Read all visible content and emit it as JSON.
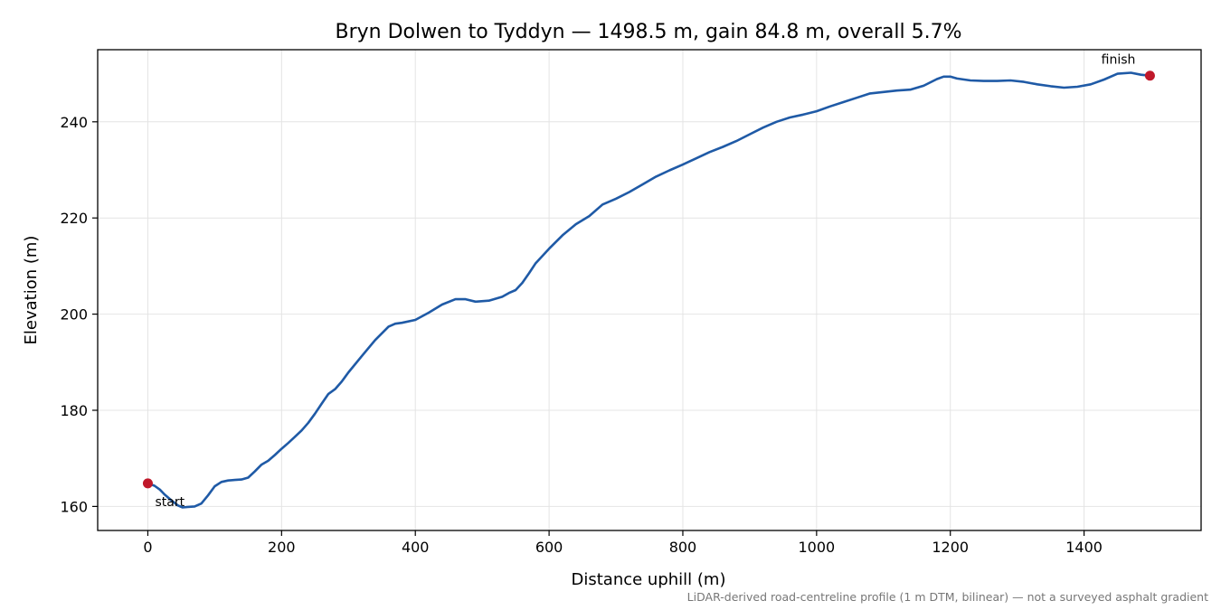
{
  "chart_data": {
    "type": "line",
    "title": "Bryn Dolwen to Tyddyn — 1498.5 m, gain 84.8 m, overall 5.7%",
    "xlabel": "Distance uphill (m)",
    "ylabel": "Elevation (m)",
    "xlim": [
      -75,
      1575
    ],
    "ylim": [
      155,
      255
    ],
    "xticks": [
      0,
      200,
      400,
      600,
      800,
      1000,
      1200,
      1400
    ],
    "yticks": [
      160,
      180,
      200,
      220,
      240
    ],
    "grid": true,
    "footnote": "LiDAR-derived road-centreline profile (1 m DTM, bilinear) — not a surveyed asphalt gradient",
    "colors": {
      "line": "#1f5aa6",
      "marker": "#c0182a",
      "grid": "#e4e4e4"
    },
    "series": [
      {
        "x": [
          0,
          10,
          18,
          25,
          35,
          45,
          52,
          60,
          70,
          80,
          90,
          100,
          110,
          120,
          130,
          140,
          150,
          160,
          170,
          180,
          190,
          200,
          210,
          220,
          230,
          240,
          250,
          260,
          270,
          280,
          290,
          300,
          320,
          340,
          360,
          370,
          380,
          400,
          420,
          440,
          460,
          475,
          490,
          510,
          530,
          540,
          550,
          560,
          570,
          580,
          590,
          600,
          620,
          640,
          660,
          680,
          700,
          720,
          740,
          760,
          780,
          800,
          820,
          840,
          860,
          880,
          900,
          920,
          940,
          960,
          980,
          1000,
          1020,
          1040,
          1060,
          1080,
          1100,
          1120,
          1140,
          1160,
          1180,
          1190,
          1200,
          1210,
          1230,
          1250,
          1270,
          1290,
          1310,
          1330,
          1350,
          1370,
          1390,
          1410,
          1430,
          1450,
          1470,
          1485,
          1498.5
        ],
        "y": [
          164.8,
          164.3,
          163.5,
          162.5,
          161.3,
          160.2,
          159.8,
          159.9,
          160.0,
          160.6,
          162.3,
          164.2,
          165.1,
          165.4,
          165.5,
          165.6,
          166.0,
          167.3,
          168.7,
          169.5,
          170.7,
          172.0,
          173.2,
          174.5,
          175.8,
          177.4,
          179.3,
          181.4,
          183.4,
          184.4,
          186.0,
          187.9,
          191.3,
          194.6,
          197.4,
          198.0,
          198.2,
          198.8,
          200.3,
          202.0,
          203.1,
          203.1,
          202.6,
          202.8,
          203.6,
          204.4,
          205.0,
          206.5,
          208.5,
          210.6,
          212.1,
          213.6,
          216.4,
          218.7,
          220.4,
          222.8,
          224.0,
          225.4,
          227.0,
          228.6,
          229.9,
          231.1,
          232.4,
          233.7,
          234.8,
          236.0,
          237.4,
          238.8,
          240.0,
          240.9,
          241.5,
          242.2,
          243.2,
          244.1,
          245.0,
          245.9,
          246.2,
          246.5,
          246.7,
          247.5,
          248.9,
          249.4,
          249.4,
          249.0,
          248.6,
          248.5,
          248.5,
          248.6,
          248.3,
          247.8,
          247.4,
          247.1,
          247.3,
          247.8,
          248.8,
          250.0,
          250.2,
          249.8,
          249.6
        ]
      }
    ],
    "annotations": [
      {
        "text": "start",
        "x": 0,
        "y": 164.8
      },
      {
        "text": "finish",
        "x": 1498.5,
        "y": 249.6
      }
    ]
  }
}
